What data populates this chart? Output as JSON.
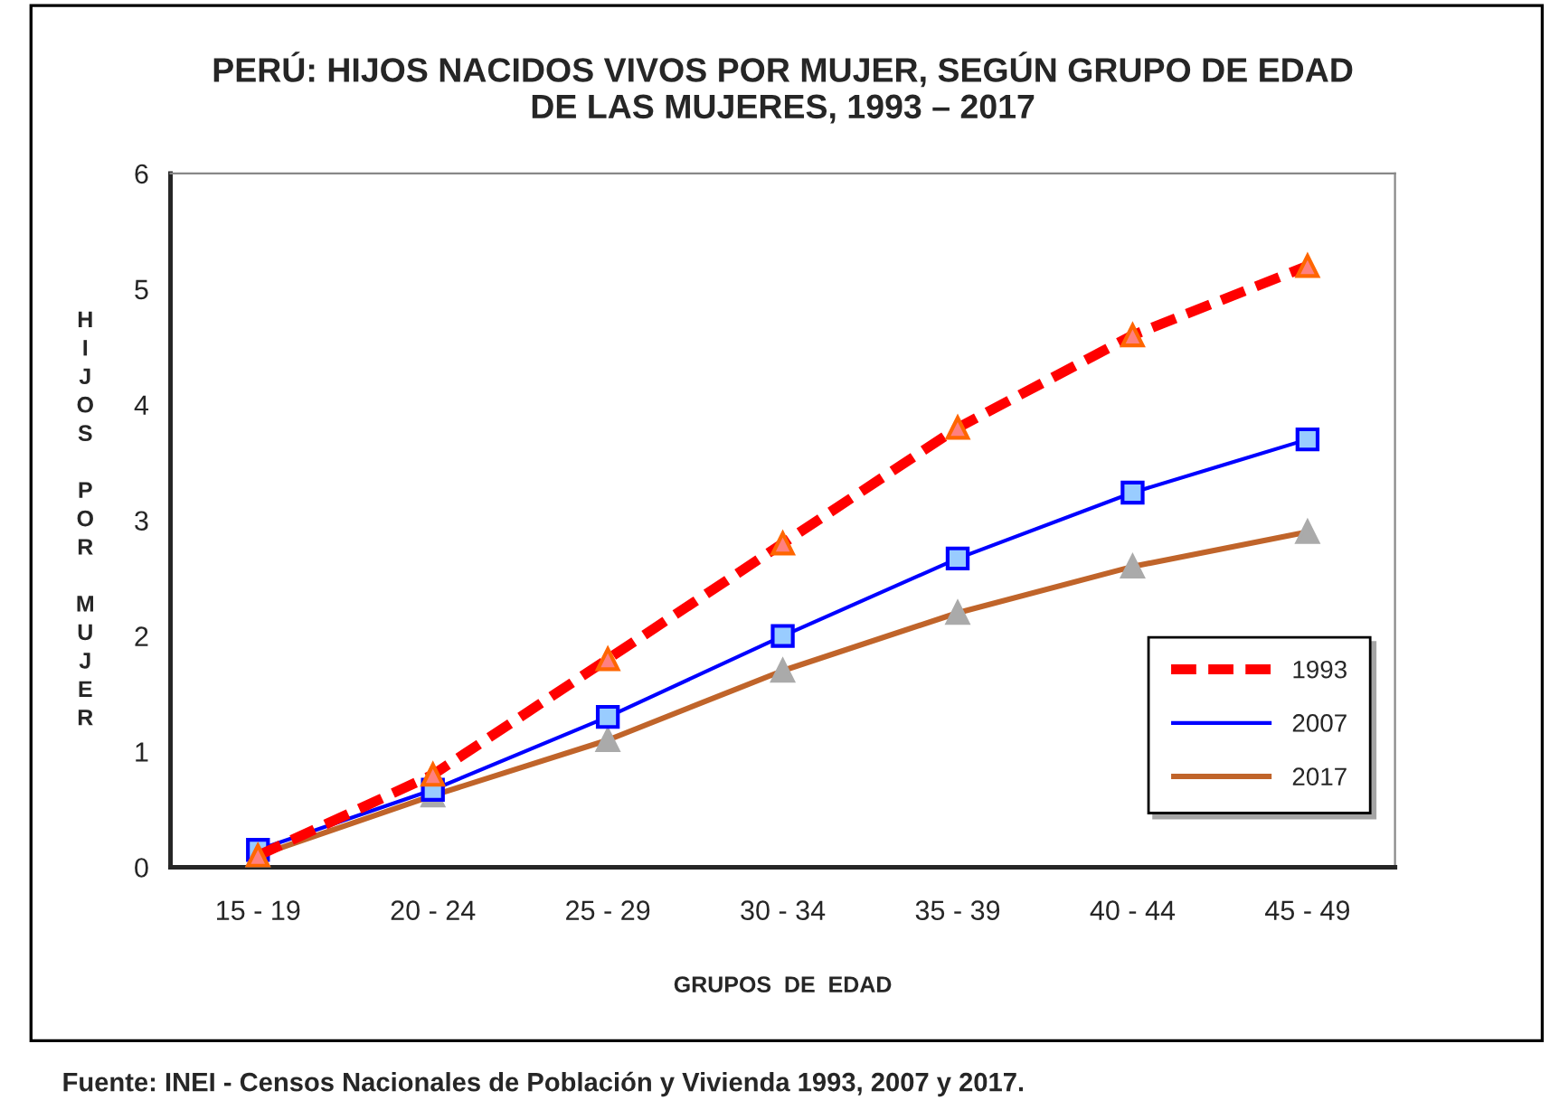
{
  "chart_data": {
    "type": "line",
    "title": "PERÚ: HIJOS NACIDOS VIVOS POR MUJER, SEGÚN GRUPO DE EDAD\nDE LAS MUJERES, 1993 – 2017",
    "xlabel": "GRUPOS  DE  EDAD",
    "ylabel": "HIJOS POR MUJER",
    "categories": [
      "15 - 19",
      "20 - 24",
      "25 - 29",
      "30 - 34",
      "35 - 39",
      "40 - 44",
      "45 - 49"
    ],
    "series": [
      {
        "name": "1993",
        "color": "#ff0000",
        "values": [
          0.1,
          0.8,
          1.8,
          2.8,
          3.8,
          4.6,
          5.2
        ],
        "marker": "triangle",
        "line_style": "dashed"
      },
      {
        "name": "2007",
        "color": "#0000ff",
        "values": [
          0.15,
          0.67,
          1.3,
          2.0,
          2.67,
          3.24,
          3.7
        ],
        "marker": "square",
        "line_style": "solid"
      },
      {
        "name": "2017",
        "color": "#c0642a",
        "values": [
          0.1,
          0.62,
          1.1,
          1.7,
          2.2,
          2.6,
          2.9
        ],
        "marker": "triangle",
        "line_style": "solid"
      }
    ],
    "ylim": [
      0,
      6
    ],
    "yticks": [
      0,
      1,
      2,
      3,
      4,
      5,
      6
    ],
    "grid": false,
    "legend": "bottom right",
    "annotations": [
      "Fuente: INEI - Censos Nacionales de Población y Vivienda 1993, 2007 y 2017."
    ]
  }
}
